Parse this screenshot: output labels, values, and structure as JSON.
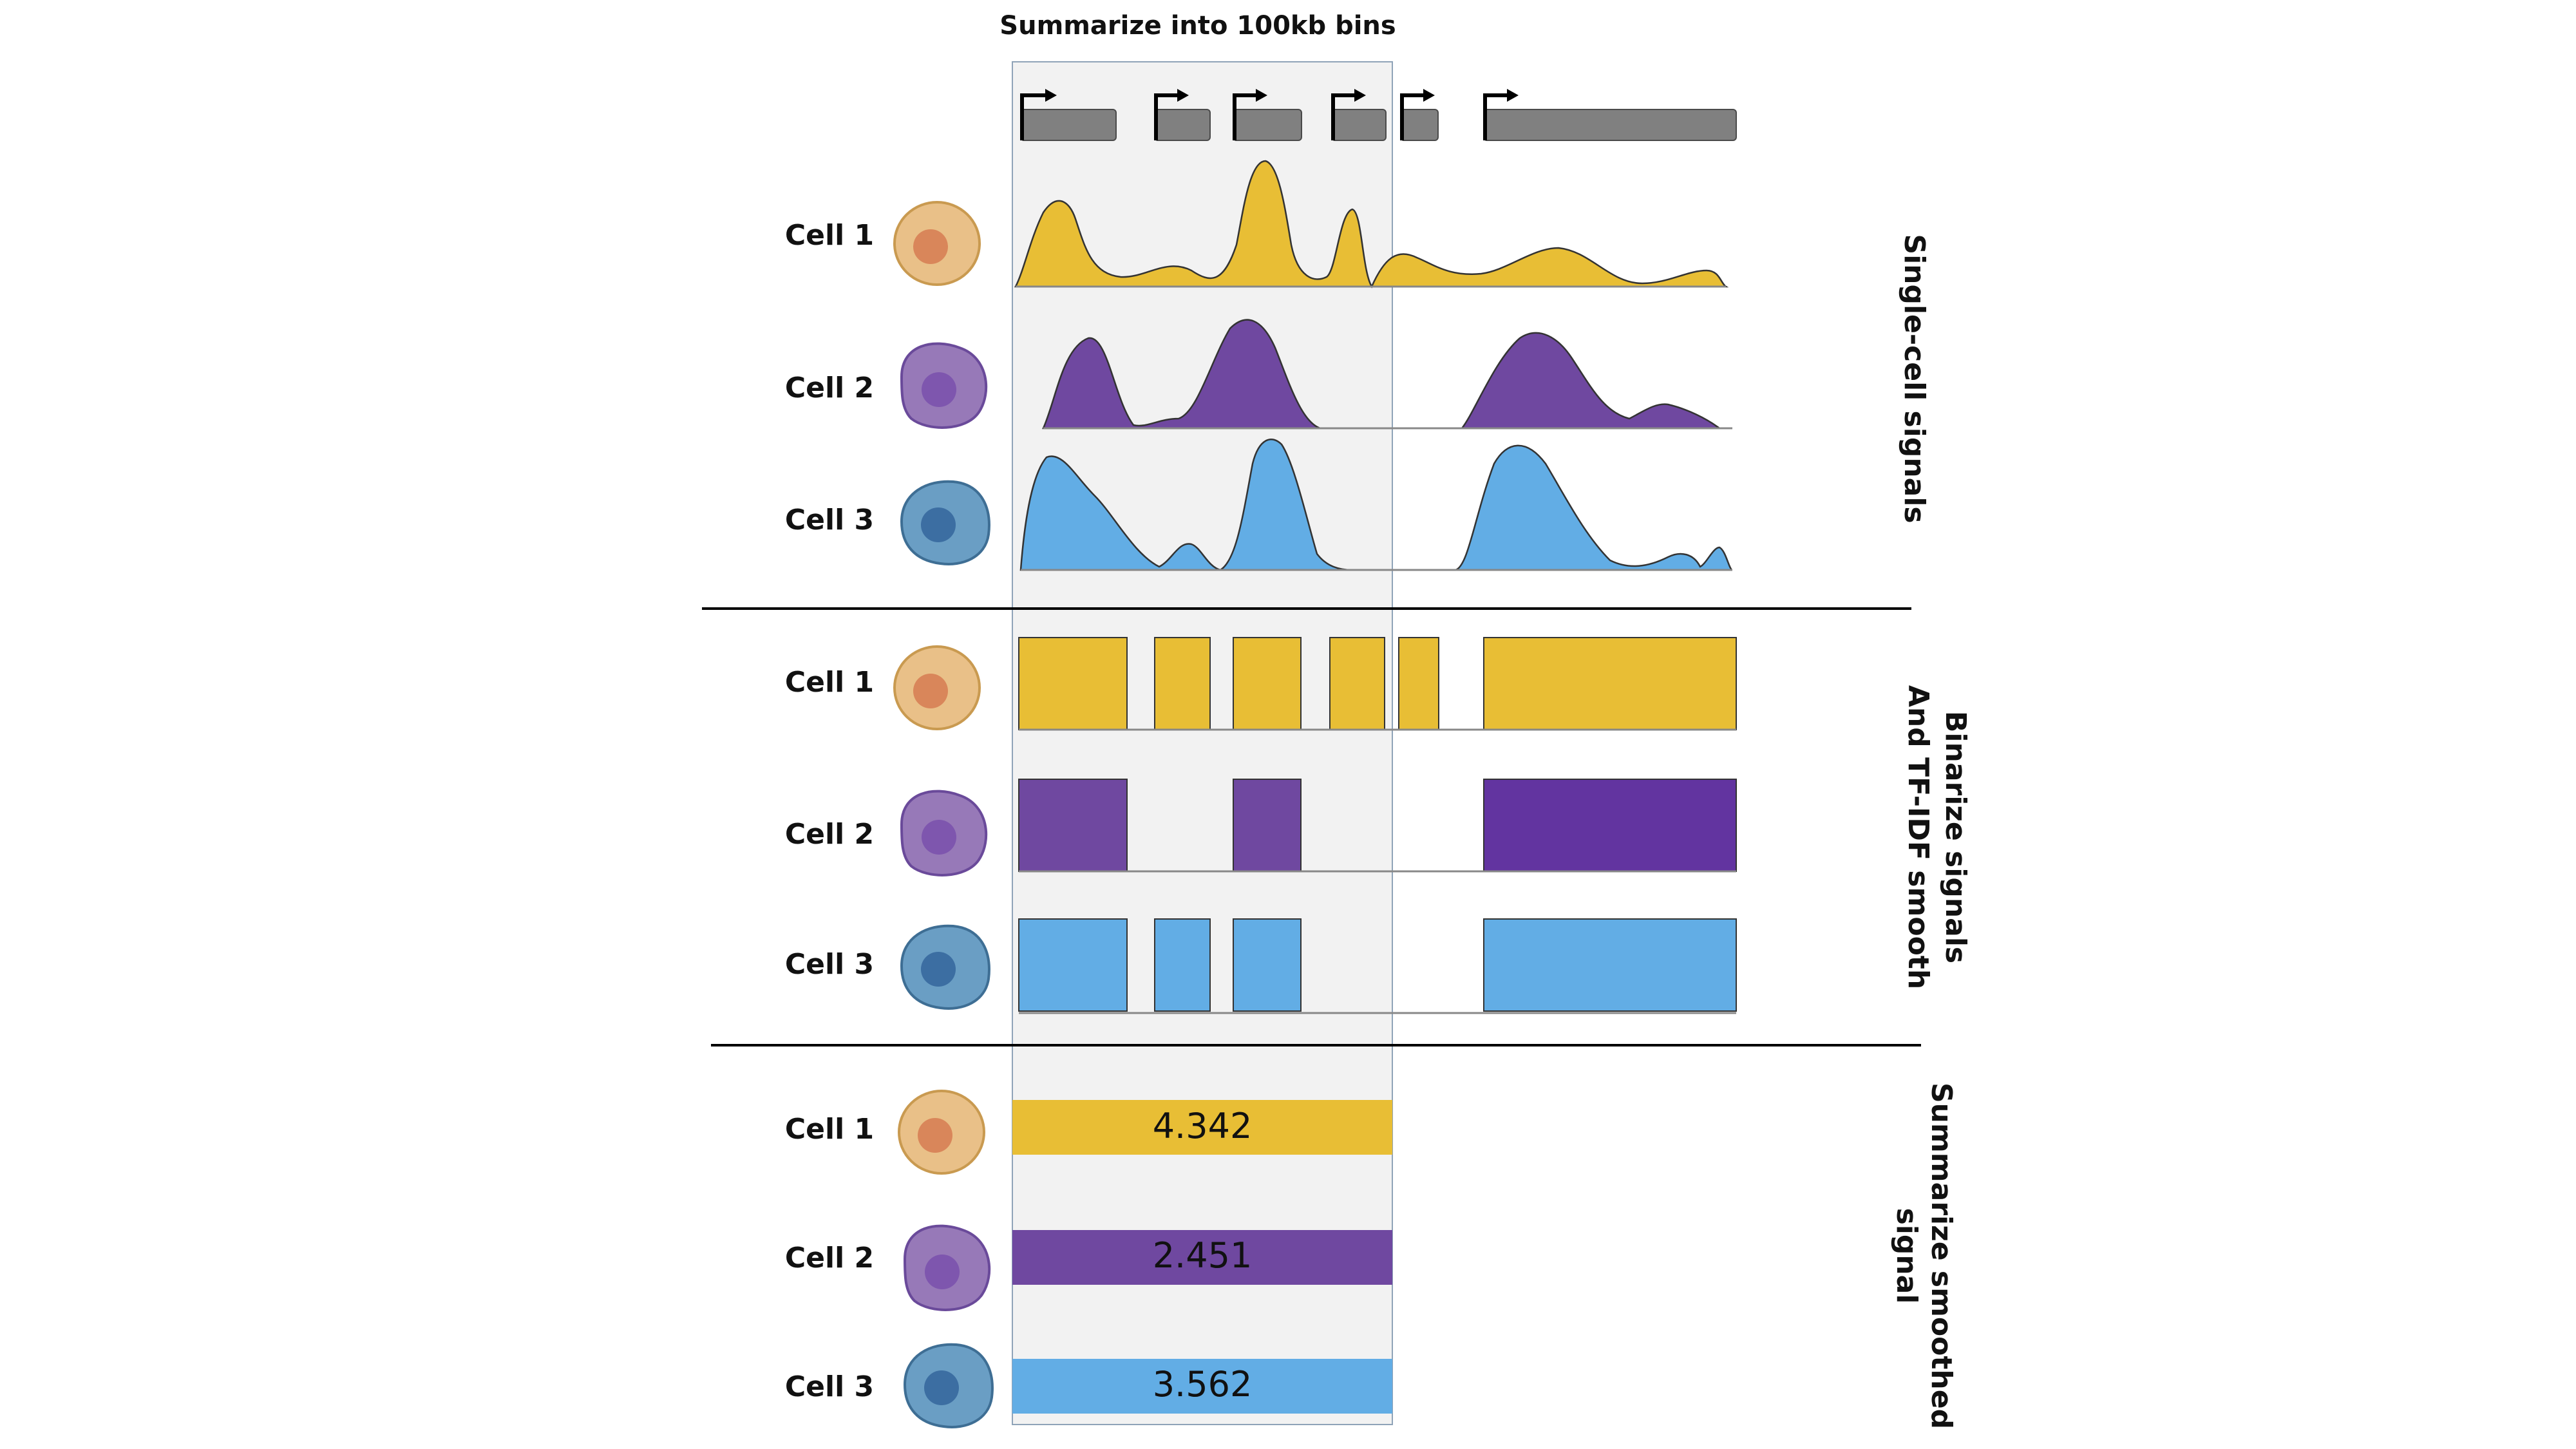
{
  "bin_header": "Summarize into 100kb bins",
  "colors": {
    "cell1": "#E8BE35",
    "cell1_body": "#E9C088",
    "cell1_nucleus": "#D9865A",
    "cell2": "#6F48A0",
    "cell2_body": "#9779B8",
    "cell2_nucleus": "#7E56AE",
    "cell3": "#62ADE5",
    "cell3_body": "#6A9EC4",
    "cell3_nucleus": "#3C6EA2",
    "gene": "#808080",
    "bin_bg": "#F2F2F2"
  },
  "sections": [
    {
      "id": "single-cell",
      "label_lines": [
        "Single-cell signals"
      ],
      "cells": [
        "Cell 1",
        "Cell 2",
        "Cell 3"
      ]
    },
    {
      "id": "binarize",
      "label_lines": [
        "Binarize signals",
        "And TF-IDF smooth"
      ],
      "cells": [
        "Cell 1",
        "Cell 2",
        "Cell 3"
      ]
    },
    {
      "id": "summarize",
      "label_lines": [
        "Summarize smoothed",
        "signal"
      ],
      "cells": [
        "Cell 1",
        "Cell 2",
        "Cell 3"
      ]
    }
  ],
  "summary_values": [
    "4.342",
    "2.451",
    "3.562"
  ]
}
